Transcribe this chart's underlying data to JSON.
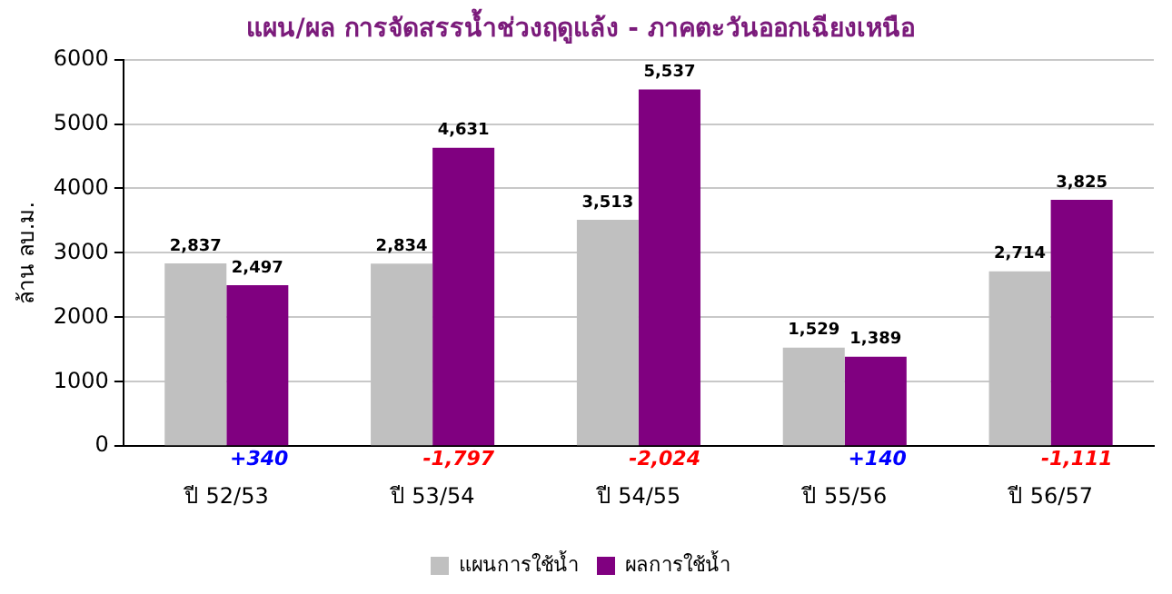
{
  "chart_data": {
    "type": "bar",
    "title": "แผน/ผล การจัดสรรน้ำช่วงฤดูแล้ง - ภาคตะวันออกเฉียงเหนือ",
    "ylabel": "ล้าน ลบ.ม.",
    "categories": [
      "ปี 52/53",
      "ปี 53/54",
      "ปี 54/55",
      "ปี 55/56",
      "ปี 56/57"
    ],
    "series": [
      {
        "name": "แผนการใช้น้ำ",
        "color": "#c0c0c0",
        "values": [
          2837,
          2834,
          3513,
          1529,
          2714
        ],
        "value_labels": [
          "2,837",
          "2,834",
          "3,513",
          "1,529",
          "2,714"
        ]
      },
      {
        "name": "ผลการใช้น้ำ",
        "color": "#800080",
        "values": [
          2497,
          4631,
          5537,
          1389,
          3825
        ],
        "value_labels": [
          "2,497",
          "4,631",
          "5,537",
          "1,389",
          "3,825"
        ]
      }
    ],
    "ylim": [
      0,
      6000
    ],
    "yticks": [
      0,
      1000,
      2000,
      3000,
      4000,
      5000,
      6000
    ],
    "grid": "y",
    "legend": "bottom",
    "annotations": [
      "+340",
      "-1,797",
      "-2,024",
      "+140",
      "-1,111"
    ]
  }
}
